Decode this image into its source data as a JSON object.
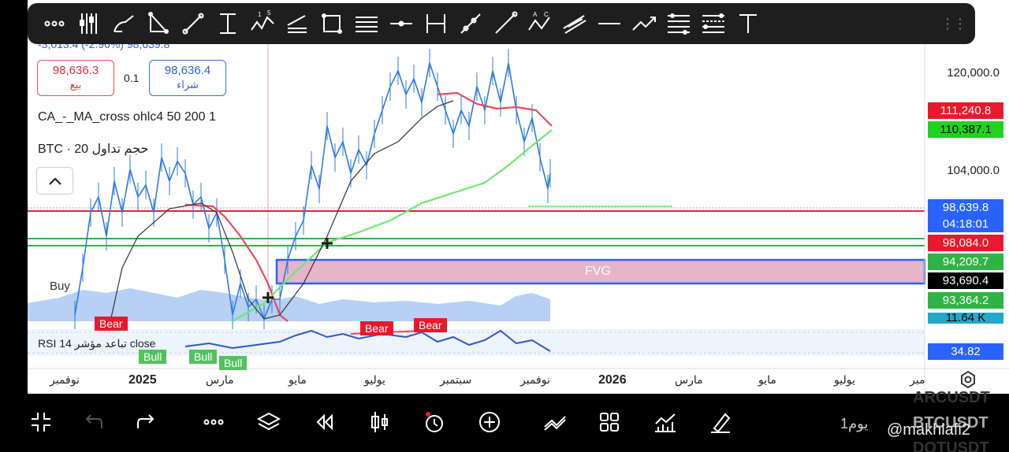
{
  "toolbar": {
    "tools": [
      "more-icon",
      "indicators-icon",
      "brush-icon",
      "triangle-icon",
      "trend-line-icon",
      "vertical-range-icon",
      "elliott-wave-icon",
      "parallel-channel-icon",
      "rectangle-icon",
      "text-lines-icon",
      "horizontal-ray-icon",
      "date-range-icon",
      "ray-icon",
      "extended-line-icon",
      "abcd-pattern-icon",
      "pitchfork-icon",
      "horizontal-line-icon",
      "arrow-icon",
      "fib-retracement-icon",
      "fib-extension-icon",
      "text-icon"
    ]
  },
  "header": {
    "price_change": "-3,013.4 (-2.96%) 98,639.8",
    "sell_price": "98,636.3",
    "sell_label": "بيع",
    "spread": "0.1",
    "buy_price": "98,636.4",
    "buy_label": "شراء"
  },
  "indicators": {
    "ma_cross": "CA_-_MA_cross ohlc4 50 200 1",
    "volume": "BTC · حجم تداول 20",
    "buy_label": "Buy",
    "rsi": "RSI تباعد مؤشر 14 close"
  },
  "price_axis": {
    "labels": [
      {
        "value": "120,000.0"
      },
      {
        "value": "104,000.0"
      }
    ],
    "badges": [
      {
        "value": "111,240.8",
        "bg": "#e8192c",
        "color": "#ffffff"
      },
      {
        "value": "110,387.1",
        "bg": "#1fd41f",
        "color": "#000000"
      },
      {
        "value": "98,639.8",
        "bg": "#2962ff",
        "color": "#ffffff"
      },
      {
        "value": "04:18:01",
        "bg": "#2962ff",
        "color": "#ffffff"
      },
      {
        "value": "98,084.0",
        "bg": "#e8192c",
        "color": "#ffffff"
      },
      {
        "value": "94,209.7",
        "bg": "#2fb344",
        "color": "#ffffff"
      },
      {
        "value": "93,690.4",
        "bg": "#000000",
        "color": "#ffffff"
      },
      {
        "value": "93,364.2",
        "bg": "#2fb344",
        "color": "#ffffff"
      },
      {
        "value": "11.64 K",
        "bg": "#22a8c8",
        "color": "#000000"
      },
      {
        "value": "34.82",
        "bg": "#2962ff",
        "color": "#ffffff"
      }
    ]
  },
  "time_axis": {
    "labels": [
      "نوفمبر",
      "2025",
      "مارس",
      "مايو",
      "يوليو",
      "سبتمبر",
      "نوفمبر",
      "2026",
      "مارس",
      "مايو",
      "يوليو",
      "مبر"
    ]
  },
  "annotations": {
    "fvg": "FVG",
    "bear1": "Bear",
    "bear2": "Bear",
    "bear3": "Bear",
    "bull1": "Bull",
    "bull2": "Bull",
    "bull3": "Bull"
  },
  "bottom": {
    "timeframe": "1يوم",
    "watermark_top": "ARCUSDT",
    "watermark_mid": "BTCUSDT",
    "watermark_bot": "DOTUSDT",
    "handle": "@makhlafi2"
  },
  "chart_data": {
    "type": "line",
    "x": [
      "2024-11",
      "2025-01",
      "2025-03",
      "2025-05",
      "2025-07",
      "2025-09",
      "2025-11"
    ],
    "series": [
      {
        "values": [
          88000,
          100000,
          86000,
          95000,
          117000,
          112000,
          98640
        ]
      }
    ],
    "ylim": [
      80000,
      126000
    ]
  },
  "colors": {
    "ma_fast": "#e84a5f",
    "ma_slow": "#6ee86e",
    "candles": "#2f7be0",
    "fvg_fill": "#e8b4c8",
    "fvg_border": "#2962ff"
  }
}
